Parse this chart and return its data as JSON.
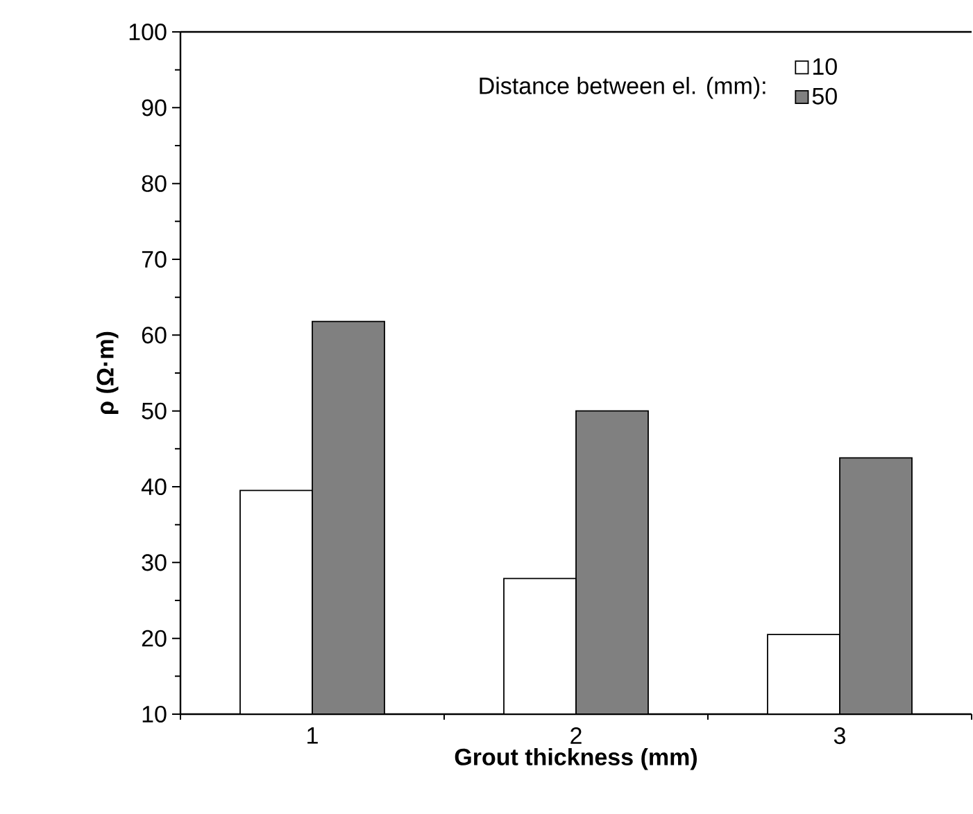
{
  "chart_data": {
    "type": "bar",
    "xlabel": "Grout thickness (mm)",
    "ylabel": "ρ (Ω·m)",
    "legend_title": "Distance between el. (mm):",
    "categories": [
      "1",
      "2",
      "3"
    ],
    "series": [
      {
        "name": "10",
        "color": "#ffffff",
        "values": [
          39.5,
          27.9,
          20.5
        ]
      },
      {
        "name": "50",
        "color": "#808080",
        "values": [
          61.8,
          50,
          43.8
        ]
      }
    ],
    "ylim": [
      10,
      100
    ],
    "yticks": [
      10,
      20,
      30,
      40,
      50,
      60,
      70,
      80,
      90,
      100
    ],
    "legend": "top right",
    "grid": false
  }
}
